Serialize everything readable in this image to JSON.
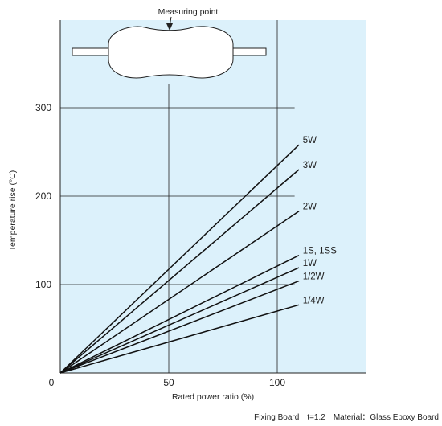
{
  "chart_data": {
    "type": "line",
    "title": "",
    "xlabel": "Rated power ratio (%)",
    "ylabel": "Temperature rise (°C)",
    "xlim": [
      0,
      140
    ],
    "ylim": [
      0,
      385
    ],
    "x_ticks": [
      "0",
      "50",
      "100"
    ],
    "x_tick_values": [
      0,
      50,
      100
    ],
    "y_ticks": [
      "100",
      "200",
      "300"
    ],
    "y_tick_values": [
      100,
      200,
      300
    ],
    "grid": true,
    "background": "#dcf1fb",
    "series": [
      {
        "name": "5W",
        "x": [
          0,
          110
        ],
        "y": [
          0,
          258
        ]
      },
      {
        "name": "3W",
        "x": [
          0,
          110
        ],
        "y": [
          0,
          230
        ]
      },
      {
        "name": "2W",
        "x": [
          0,
          110
        ],
        "y": [
          0,
          183
        ]
      },
      {
        "name": "1S, 1SS",
        "x": [
          0,
          110
        ],
        "y": [
          0,
          133
        ]
      },
      {
        "name": "1W",
        "x": [
          0,
          110
        ],
        "y": [
          0,
          119
        ]
      },
      {
        "name": "1/2W",
        "x": [
          0,
          110
        ],
        "y": [
          0,
          104
        ]
      },
      {
        "name": "1/4W",
        "x": [
          0,
          110
        ],
        "y": [
          0,
          77
        ]
      }
    ],
    "annotations": {
      "measuring_point": "Measuring point",
      "footnote": "Fixing Board　t=1.2　Material：Glass Epoxy Board"
    }
  }
}
